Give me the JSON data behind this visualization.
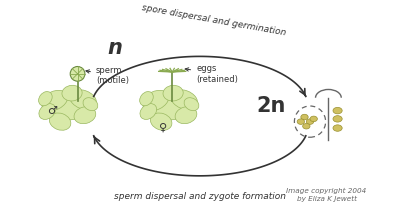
{
  "bg_color": "#ffffff",
  "arrow_color": "#333333",
  "text_color": "#333333",
  "plant_fill": "#d8e9a8",
  "plant_edge": "#9ab860",
  "copyright": "Image copyright 2004\nby Eliza K Jewett",
  "top_label": "sperm dispersal and zygote formation",
  "bottom_label": "spore dispersal and germination",
  "label_2n": "2n",
  "label_n": "n",
  "sperm_label": "sperm\n(motile)",
  "eggs_label": "eggs\n(retained)",
  "male_symbol": "♂",
  "female_symbol": "♀",
  "figsize": [
    3.94,
    2.08
  ],
  "dpi": 100
}
